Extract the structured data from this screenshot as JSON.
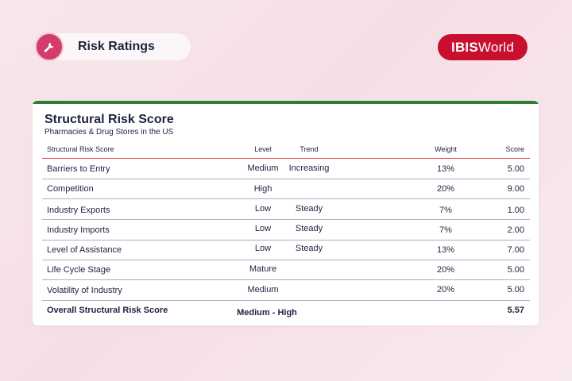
{
  "header": {
    "section_label": "Risk Ratings",
    "icon": "wrench-icon",
    "logo_bold": "IBIS",
    "logo_regular": "World"
  },
  "card": {
    "title": "Structural Risk Score",
    "subtitle": "Pharmacies & Drug Stores in the US",
    "columns": {
      "name": "Structural Risk Score",
      "level": "Level",
      "trend": "Trend",
      "weight": "Weight",
      "score": "Score"
    },
    "rows": [
      {
        "name": "Barriers to Entry",
        "level": "Medium",
        "trend": "Increasing",
        "weight": "13%",
        "score": "5.00"
      },
      {
        "name": "Competition",
        "level": "High",
        "trend": "",
        "weight": "20%",
        "score": "9.00"
      },
      {
        "name": "Industry Exports",
        "level": "Low",
        "trend": "Steady",
        "weight": "7%",
        "score": "1.00"
      },
      {
        "name": "Industry Imports",
        "level": "Low",
        "trend": "Steady",
        "weight": "7%",
        "score": "2.00"
      },
      {
        "name": "Level of Assistance",
        "level": "Low",
        "trend": "Steady",
        "weight": "13%",
        "score": "7.00"
      },
      {
        "name": "Life Cycle Stage",
        "level": "Mature",
        "trend": "",
        "weight": "20%",
        "score": "5.00"
      },
      {
        "name": "Volatility of Industry",
        "level": "Medium",
        "trend": "",
        "weight": "20%",
        "score": "5.00"
      }
    ],
    "total": {
      "name": "Overall Structural Risk Score",
      "level": "Medium - High",
      "score": "5.57"
    }
  },
  "colors": {
    "accent": "#d23c6a",
    "logo_bg": "#c8102e",
    "card_topbar": "#2e7d32",
    "header_rule": "#e04848"
  }
}
